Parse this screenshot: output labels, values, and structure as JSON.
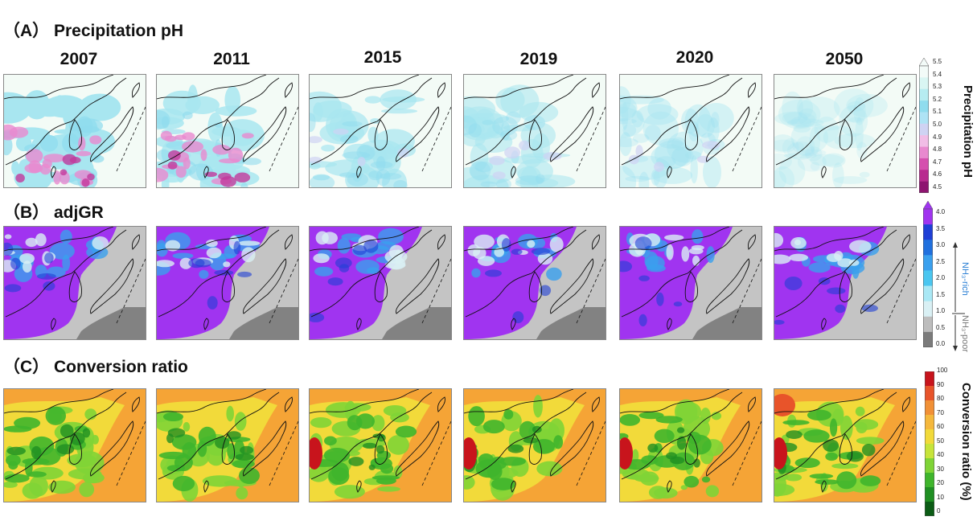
{
  "panels": {
    "a": {
      "title": "（A）  Precipitation pH"
    },
    "b": {
      "title": "（B）   adjGR"
    },
    "c": {
      "title": "（C）  Conversion ratio"
    }
  },
  "years": [
    "2007",
    "2011",
    "2015",
    "2019",
    "2020",
    "2050"
  ],
  "colorbars": {
    "ph": {
      "label": "Precipitation pH",
      "ticks": [
        "5.5",
        "5.4",
        "5.3",
        "5.2",
        "5.1",
        "5.0",
        "4.9",
        "4.8",
        "4.7",
        "4.6",
        "4.5"
      ],
      "colors": [
        "#f3fbf8",
        "#d9f6f3",
        "#b6ecf1",
        "#8fdcee",
        "#aee3f5",
        "#cfd3f3",
        "#f1bde6",
        "#e889cf",
        "#d54fae",
        "#b82b8f",
        "#8e1470"
      ]
    },
    "adjgr": {
      "label_rich": "NH₃-rich",
      "label_poor": "NH₃-poor",
      "ticks": [
        "4.0",
        "3.5",
        "3.0",
        "2.5",
        "2.0",
        "1.5",
        "1.0",
        "0.5",
        "0.0"
      ],
      "colors": [
        "#a034f0",
        "#1f3fd6",
        "#2070de",
        "#3aa0ee",
        "#4ac6f0",
        "#a9e8f5",
        "#d9f0f4",
        "#bdbdbd",
        "#7b7b7b"
      ],
      "colors_note": "top to bottom"
    },
    "conversion": {
      "label": "Conversion ratio (%)",
      "ticks": [
        "100",
        "90",
        "80",
        "70",
        "60",
        "50",
        "40",
        "30",
        "20",
        "10",
        "0"
      ],
      "colors": [
        "#c8141c",
        "#e8542a",
        "#f19036",
        "#f5b83c",
        "#f2da3a",
        "#c7e43a",
        "#7fd436",
        "#3fb52c",
        "#1f8f22",
        "#0b5c15"
      ]
    }
  },
  "colors": {
    "ph_map_bg": "#b5ecf2",
    "ph_map_land": "#f3fbf6",
    "adjgr_purple": "#a034f0",
    "adjgr_gray": "#bdbdbd",
    "conv_orange": "#f5a436",
    "conv_green": "#3fb52c"
  }
}
